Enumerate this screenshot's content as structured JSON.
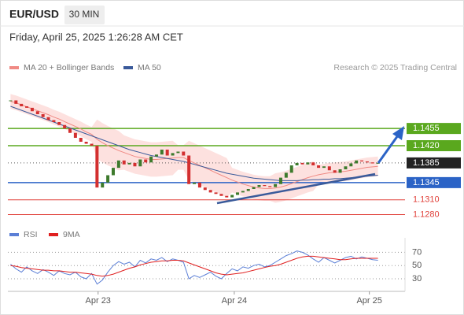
{
  "header": {
    "symbol": "EUR/USD",
    "interval": "30 MIN",
    "timestamp": "Friday, April 25, 2025 1:26:28 AM CET"
  },
  "chart_data": [
    {
      "type": "candlestick",
      "source": "Research © 2025 Trading Central",
      "up_color": "#3d7a2c",
      "down_color": "#d32f2f",
      "ylim": [
        1.126,
        1.154
      ],
      "xlim": [
        -0.5,
        73
      ],
      "values": [
        1.1512,
        1.1505,
        1.15,
        1.1497,
        1.149,
        1.1484,
        1.1478,
        1.1472,
        1.1468,
        1.1462,
        1.1455,
        1.1446,
        1.1436,
        1.1428,
        1.1424,
        1.142,
        1.1335,
        1.1345,
        1.136,
        1.1375,
        1.139,
        1.1382,
        1.1385,
        1.1378,
        1.1392,
        1.1386,
        1.1398,
        1.1402,
        1.1412,
        1.14,
        1.1405,
        1.1408,
        1.14,
        1.1342,
        1.1345,
        1.1335,
        1.133,
        1.1325,
        1.1322,
        1.1318,
        1.1315,
        1.132,
        1.1325,
        1.1328,
        1.1332,
        1.1336,
        1.134,
        1.1338,
        1.1336,
        1.1342,
        1.1355,
        1.1365,
        1.138,
        1.1385,
        1.1382,
        1.1386,
        1.138,
        1.1375,
        1.1378,
        1.137,
        1.1365,
        1.1372,
        1.1378,
        1.1384,
        1.139,
        1.1388,
        1.1386,
        1.1384,
        1.1385
      ],
      "series": [
        {
          "name": "MA 20 + Bollinger Bands",
          "color": "#f08a84",
          "band_color": "#fde1df",
          "values": [
            1.151,
            1.1507,
            1.1503,
            1.1499,
            1.1495,
            1.1491,
            1.1487,
            1.1483,
            1.1478,
            1.1474,
            1.1469,
            1.1464,
            1.1459,
            1.1454,
            1.1448,
            1.1443,
            1.1433,
            1.1426,
            1.142,
            1.1415,
            1.141,
            1.1406,
            1.1402,
            1.1398,
            1.1396,
            1.1394,
            1.1392,
            1.1392,
            1.1393,
            1.1394,
            1.1395,
            1.1396,
            1.1396,
            1.139,
            1.1385,
            1.138,
            1.1375,
            1.137,
            1.1365,
            1.136,
            1.1355,
            1.135,
            1.1346,
            1.1342,
            1.1339,
            1.1336,
            1.1334,
            1.1333,
            1.1333,
            1.1334,
            1.1336,
            1.1339,
            1.1343,
            1.1347,
            1.1351,
            1.1355,
            1.1358,
            1.1361,
            1.1363,
            1.1365,
            1.1366,
            1.1367,
            1.1368,
            1.137,
            1.1372,
            1.1374,
            1.1376,
            1.1377,
            1.1378
          ],
          "upper": [
            1.1525,
            1.1522,
            1.1518,
            1.1514,
            1.151,
            1.1506,
            1.1502,
            1.1498,
            1.1493,
            1.1489,
            1.1484,
            1.1479,
            1.1474,
            1.1469,
            1.1463,
            1.1458,
            1.1473,
            1.1466,
            1.146,
            1.1455,
            1.145,
            1.1441,
            1.1437,
            1.1433,
            1.1431,
            1.1429,
            1.1427,
            1.1427,
            1.1428,
            1.1429,
            1.143,
            1.1421,
            1.1421,
            1.143,
            1.1425,
            1.142,
            1.1415,
            1.141,
            1.1405,
            1.14,
            1.1395,
            1.1375,
            1.1371,
            1.1367,
            1.1364,
            1.1361,
            1.1359,
            1.1358,
            1.1358,
            1.1364,
            1.1366,
            1.1369,
            1.1373,
            1.1377,
            1.1381,
            1.1385,
            1.1388,
            1.1381,
            1.1383,
            1.1385,
            1.1386,
            1.1387,
            1.1388,
            1.139,
            1.1392,
            1.1394,
            1.1396,
            1.1397,
            1.1398
          ],
          "lower": [
            1.1495,
            1.1492,
            1.1488,
            1.1484,
            1.148,
            1.1476,
            1.1472,
            1.1468,
            1.1463,
            1.1459,
            1.1454,
            1.1449,
            1.1444,
            1.1439,
            1.1433,
            1.1428,
            1.1393,
            1.1386,
            1.138,
            1.1375,
            1.137,
            1.1371,
            1.1367,
            1.1363,
            1.1361,
            1.1359,
            1.1357,
            1.1357,
            1.1358,
            1.1359,
            1.136,
            1.1371,
            1.1371,
            1.135,
            1.1345,
            1.134,
            1.1335,
            1.133,
            1.1325,
            1.132,
            1.1315,
            1.1325,
            1.1321,
            1.1317,
            1.1314,
            1.1311,
            1.1309,
            1.1308,
            1.1308,
            1.1304,
            1.1306,
            1.1309,
            1.1313,
            1.1317,
            1.1321,
            1.1325,
            1.1328,
            1.1341,
            1.1343,
            1.1345,
            1.1346,
            1.1347,
            1.1348,
            1.135,
            1.1352,
            1.1354,
            1.1356,
            1.1357,
            1.1358
          ]
        },
        {
          "name": "MA 50",
          "color": "#3a5a9a",
          "values": [
            1.15,
            1.1496,
            1.1492,
            1.1488,
            1.1484,
            1.148,
            1.1476,
            1.1472,
            1.1468,
            1.1464,
            1.146,
            1.1456,
            1.1452,
            1.1448,
            1.1444,
            1.144,
            1.1436,
            1.1432,
            1.1428,
            1.1424,
            1.142,
            1.1416,
            1.1412,
            1.1409,
            1.1406,
            1.1403,
            1.14,
            1.1398,
            1.1396,
            1.1394,
            1.1392,
            1.139,
            1.1388,
            1.1385,
            1.1382,
            1.1379,
            1.1376,
            1.1373,
            1.137,
            1.1367,
            1.1364,
            1.1362,
            1.136,
            1.1358,
            1.1356,
            1.1354,
            1.1353,
            1.1352,
            1.1351,
            1.135,
            1.1349,
            1.1349,
            1.1349,
            1.1349,
            1.135,
            1.135,
            1.1351,
            1.1351,
            1.1352,
            1.1352,
            1.1353,
            1.1353,
            1.1354,
            1.1355,
            1.1356,
            1.1357,
            1.1358,
            1.1359,
            1.136
          ]
        }
      ],
      "levels": [
        {
          "value": 1.1455,
          "label": "1.1455",
          "color": "#5aa81e",
          "boxed": true,
          "dotted": false
        },
        {
          "value": 1.142,
          "label": "1.1420",
          "color": "#5aa81e",
          "boxed": true,
          "dotted": false
        },
        {
          "value": 1.1385,
          "label": "1.1385",
          "color": "#222222",
          "boxed": true,
          "dotted": true
        },
        {
          "value": 1.1345,
          "label": "1.1345",
          "color": "#2b63c6",
          "boxed": true,
          "dotted": false
        },
        {
          "value": 1.131,
          "label": "1.1310",
          "color": "#e0403a",
          "boxed": false,
          "dotted": false
        },
        {
          "value": 1.128,
          "label": "1.1280",
          "color": "#e0403a",
          "boxed": false,
          "dotted": false
        }
      ]
    },
    {
      "type": "line",
      "ylim": [
        11,
        80
      ],
      "xlim": [
        -0.5,
        73
      ],
      "yticks": [
        70,
        50,
        30
      ],
      "grid": true,
      "xticks": [
        {
          "value": 16.2,
          "label": "Apr 23"
        },
        {
          "value": 41.4,
          "label": "Apr 24"
        },
        {
          "value": 66.4,
          "label": "Apr 25"
        }
      ],
      "series": [
        {
          "name": "RSI",
          "color": "#5b7fd6",
          "values": [
            52,
            45,
            40,
            48,
            42,
            38,
            44,
            40,
            35,
            42,
            38,
            36,
            40,
            33,
            30,
            38,
            22,
            28,
            40,
            50,
            56,
            52,
            55,
            48,
            58,
            54,
            60,
            58,
            62,
            56,
            60,
            58,
            55,
            30,
            35,
            32,
            36,
            40,
            34,
            30,
            38,
            45,
            42,
            48,
            46,
            50,
            52,
            48,
            50,
            55,
            60,
            65,
            68,
            72,
            70,
            66,
            60,
            55,
            62,
            58,
            54,
            58,
            62,
            64,
            60,
            63,
            61,
            59,
            58
          ]
        },
        {
          "name": "9MA",
          "color": "#e02020",
          "values": [
            50,
            49,
            47,
            46,
            45,
            44,
            43,
            43,
            42,
            42,
            41,
            40,
            40,
            39,
            38,
            37,
            35,
            34,
            35,
            37,
            40,
            43,
            46,
            48,
            51,
            53,
            55,
            56,
            57,
            57,
            58,
            58,
            57,
            54,
            51,
            48,
            45,
            42,
            39,
            37,
            36,
            37,
            38,
            39,
            41,
            43,
            45,
            47,
            49,
            50,
            52,
            55,
            58,
            61,
            63,
            64,
            64,
            63,
            62,
            61,
            60,
            59,
            59,
            60,
            61,
            61,
            61,
            61,
            61
          ]
        }
      ]
    }
  ]
}
